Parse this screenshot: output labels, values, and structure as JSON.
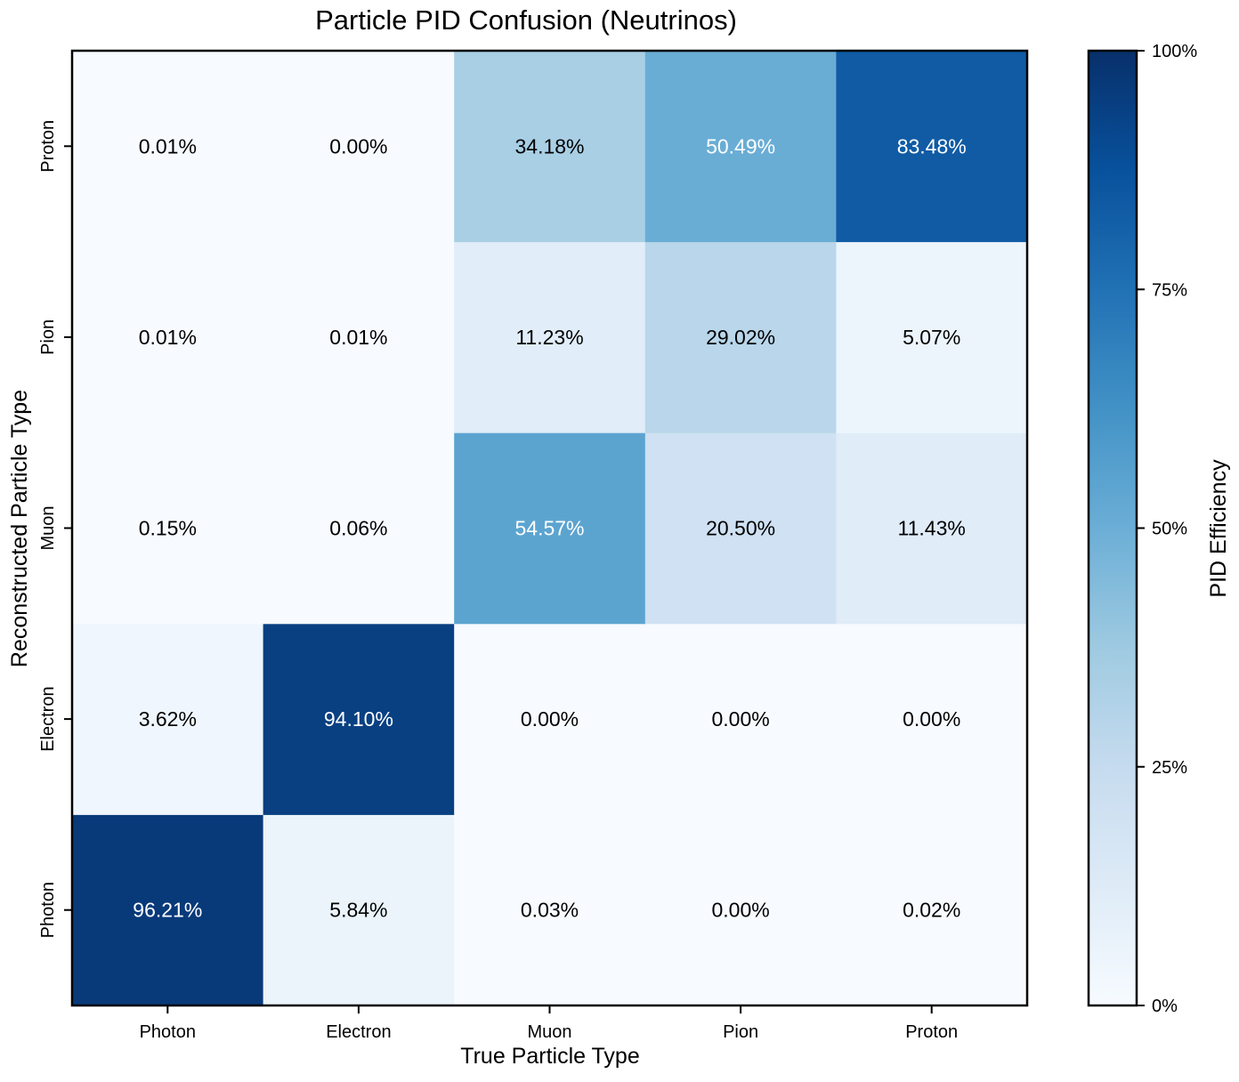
{
  "chart_data": {
    "type": "heatmap",
    "title": "Particle PID Confusion (Neutrinos)",
    "xlabel": "True Particle Type",
    "ylabel": "Reconstructed Particle Type",
    "x_categories": [
      "Photon",
      "Electron",
      "Muon",
      "Pion",
      "Proton"
    ],
    "y_categories": [
      "Photon",
      "Electron",
      "Muon",
      "Pion",
      "Proton"
    ],
    "y_order": "bottom-to-top",
    "values": [
      [
        96.21,
        5.84,
        0.03,
        0.0,
        0.02
      ],
      [
        3.62,
        94.1,
        0.0,
        0.0,
        0.0
      ],
      [
        0.15,
        0.06,
        54.57,
        20.5,
        11.43
      ],
      [
        0.01,
        0.01,
        11.23,
        29.02,
        5.07
      ],
      [
        0.01,
        0.0,
        34.18,
        50.49,
        83.48
      ]
    ],
    "value_format": "percent-2dp",
    "colorbar": {
      "label": "PID Efficiency",
      "range": [
        0,
        100
      ],
      "ticks": [
        0,
        25,
        50,
        75,
        100
      ],
      "tick_labels": [
        "0%",
        "25%",
        "50%",
        "75%",
        "100%"
      ],
      "colormap": "Blues"
    },
    "grid": false
  },
  "colors": {
    "low": "#f7fbff",
    "high": "#08306b",
    "text_dark": "#000000",
    "text_light": "#ffffff"
  }
}
